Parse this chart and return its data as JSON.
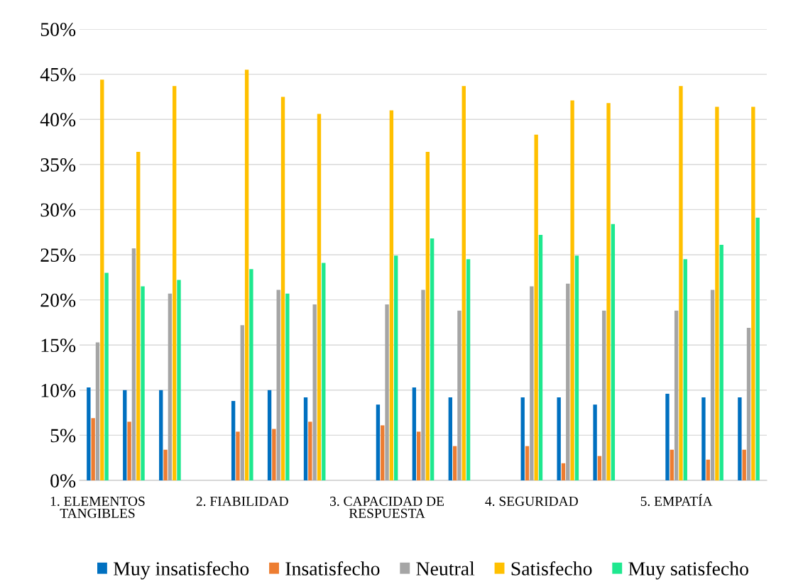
{
  "chart_data": {
    "type": "bar",
    "categories": [
      "1. ELEMENTOS\nTANGIBLES",
      null,
      null,
      null,
      "2. FIABILIDAD",
      null,
      null,
      null,
      "3. CAPACIDAD DE\nRESPUESTA",
      null,
      null,
      null,
      "4. SEGURIDAD",
      null,
      null,
      null,
      "5. EMPATÍA",
      null,
      null
    ],
    "series": [
      {
        "name": "Muy insatisfecho",
        "color": "#0070c0",
        "values": [
          10.3,
          10.0,
          10.0,
          null,
          8.8,
          10.0,
          9.2,
          null,
          8.4,
          10.3,
          9.2,
          null,
          9.2,
          9.2,
          8.4,
          null,
          9.6,
          9.2,
          9.2
        ]
      },
      {
        "name": "Insatisfecho",
        "color": "#ed7d31",
        "values": [
          6.9,
          6.5,
          3.4,
          null,
          5.4,
          5.7,
          6.5,
          null,
          6.1,
          5.4,
          3.8,
          null,
          3.8,
          1.9,
          2.7,
          null,
          3.4,
          2.3,
          3.4
        ]
      },
      {
        "name": "Neutral",
        "color": "#a5a5a5",
        "values": [
          15.3,
          25.7,
          20.7,
          null,
          17.2,
          21.1,
          19.5,
          null,
          19.5,
          21.1,
          18.8,
          null,
          21.5,
          21.8,
          18.8,
          null,
          18.8,
          21.1,
          16.9
        ]
      },
      {
        "name": "Satisfecho",
        "color": "#ffc000",
        "values": [
          44.4,
          36.4,
          43.7,
          null,
          45.5,
          42.5,
          40.6,
          null,
          41.0,
          36.4,
          43.7,
          null,
          38.3,
          42.1,
          41.8,
          null,
          43.7,
          41.4,
          41.4
        ]
      },
      {
        "name": "Muy satisfecho",
        "color": "#1ee88f",
        "values": [
          23.0,
          21.5,
          22.2,
          null,
          23.4,
          20.7,
          24.1,
          null,
          24.9,
          26.8,
          24.5,
          null,
          27.2,
          24.9,
          28.4,
          null,
          24.5,
          26.1,
          29.1
        ]
      }
    ],
    "ylim": [
      0,
      50
    ],
    "yticks": [
      {
        "value": 0,
        "label": "0%"
      },
      {
        "value": 5,
        "label": "5%"
      },
      {
        "value": 10,
        "label": "10%"
      },
      {
        "value": 15,
        "label": "15%"
      },
      {
        "value": 20,
        "label": "20%"
      },
      {
        "value": 25,
        "label": "25%"
      },
      {
        "value": 30,
        "label": "30%"
      },
      {
        "value": 35,
        "label": "35%"
      },
      {
        "value": 40,
        "label": "40%"
      },
      {
        "value": 45,
        "label": "45%"
      },
      {
        "value": 50,
        "label": "50%"
      }
    ],
    "grid": "y",
    "legend": "bottom"
  }
}
